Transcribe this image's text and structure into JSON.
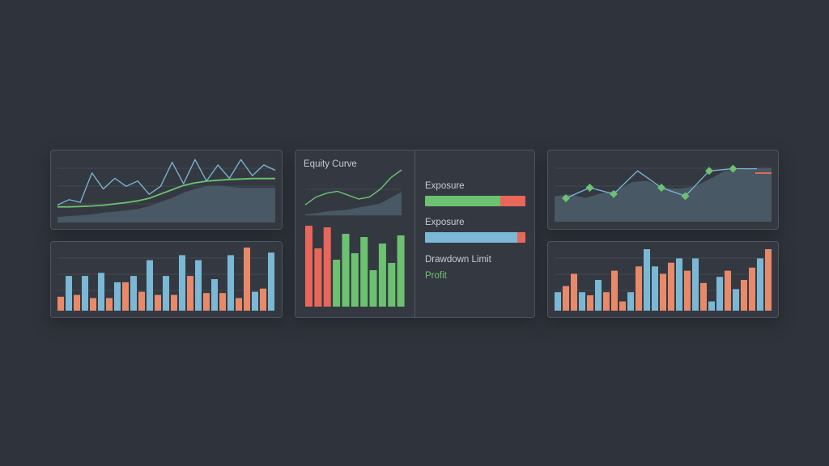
{
  "colors": {
    "blue": "#7ab8d6",
    "orange": "#e8896a",
    "red": "#e8665a",
    "green": "#6cc271",
    "area": "#4a5a66",
    "grid": "#434951",
    "line_blue": "#7ab8d6",
    "line_green": "#6cc271"
  },
  "center_panel": {
    "title": "Equity Curve",
    "metrics": [
      {
        "label": "Exposure",
        "value_pct": 75,
        "fill_color": "#6cc271",
        "rest_color": "#e8665a"
      },
      {
        "label": "Exposure",
        "value_pct": 92,
        "fill_color": "#7ab8d6",
        "rest_color": "#e8665a"
      }
    ],
    "drawdown_label": "Drawdown Limit",
    "profit_label": "Profit"
  },
  "chart_data": [
    {
      "type": "line",
      "title": "",
      "series": [
        {
          "role": "area",
          "values": [
            0.1,
            0.12,
            0.13,
            0.15,
            0.18,
            0.2,
            0.22,
            0.25,
            0.3,
            0.38,
            0.45,
            0.55,
            0.62,
            0.67,
            0.68,
            0.66,
            0.64,
            0.64,
            0.64,
            0.64
          ]
        },
        {
          "role": "line",
          "color": "blue",
          "values": [
            0.1,
            0.2,
            0.15,
            0.7,
            0.4,
            0.6,
            0.45,
            0.55,
            0.3,
            0.45,
            0.9,
            0.5,
            0.95,
            0.55,
            0.85,
            0.6,
            0.95,
            0.65,
            0.85,
            0.75
          ]
        },
        {
          "role": "line",
          "color": "green",
          "values": [
            0.1,
            0.1,
            0.11,
            0.12,
            0.14,
            0.17,
            0.2,
            0.24,
            0.3,
            0.4,
            0.5,
            0.6,
            0.66,
            0.7,
            0.72,
            0.74,
            0.75,
            0.76,
            0.76,
            0.76
          ]
        }
      ],
      "grid": true
    },
    {
      "type": "bar",
      "series": [
        {
          "values": [
            0.22,
            0.55,
            0.25,
            0.55,
            0.2,
            0.6,
            0.2,
            0.45,
            0.45,
            0.55,
            0.3,
            0.8,
            0.25,
            0.55,
            0.25,
            0.88,
            0.55,
            0.8,
            0.28,
            0.5,
            0.28,
            0.88,
            0.2,
            1.0,
            0.3,
            0.35,
            0.92
          ]
        },
        {
          "colors": [
            "orange",
            "blue",
            "orange",
            "blue",
            "orange",
            "blue",
            "orange",
            "blue",
            "orange",
            "blue",
            "orange",
            "blue",
            "orange",
            "blue",
            "orange",
            "blue",
            "orange",
            "blue",
            "orange",
            "blue",
            "orange",
            "blue",
            "orange",
            "orange",
            "blue",
            "orange",
            "blue"
          ]
        }
      ]
    },
    {
      "type": "line",
      "title": "Equity Curve",
      "series": [
        {
          "role": "area",
          "values": [
            0.02,
            0.05,
            0.1,
            0.12,
            0.14,
            0.2,
            0.25,
            0.3,
            0.45,
            0.6
          ]
        },
        {
          "role": "line",
          "color": "green",
          "values": [
            0.1,
            0.3,
            0.4,
            0.45,
            0.35,
            0.25,
            0.3,
            0.5,
            0.8,
            1.0
          ]
        }
      ]
    },
    {
      "type": "bar",
      "values": [
        1.0,
        0.72,
        0.98,
        0.58,
        0.9,
        0.66,
        0.86,
        0.45,
        0.78,
        0.54,
        0.88
      ],
      "colors": [
        "red",
        "red",
        "red",
        "green",
        "green",
        "green",
        "green",
        "green",
        "green",
        "green",
        "green"
      ]
    },
    {
      "type": "line",
      "title": "",
      "series": [
        {
          "role": "area",
          "values": [
            0.45,
            0.48,
            0.42,
            0.5,
            0.55,
            0.7,
            0.72,
            0.6,
            0.58,
            0.62,
            0.75,
            0.9,
            0.92,
            0.95,
            0.95
          ]
        },
        {
          "role": "line",
          "color": "blue",
          "values": [
            0.25,
            0.5,
            0.35,
            0.9,
            0.5,
            0.3,
            0.9,
            0.95,
            0.95
          ]
        },
        {
          "role": "markers",
          "color": "green",
          "points": [
            0,
            1,
            2,
            4,
            5,
            6,
            7
          ]
        }
      ],
      "grid": true
    },
    {
      "type": "bar",
      "series": [
        {
          "values": [
            0.3,
            0.4,
            0.6,
            0.3,
            0.25,
            0.5,
            0.3,
            0.65,
            0.15,
            0.3,
            0.72,
            1.0,
            0.72,
            0.6,
            0.78,
            0.85,
            0.65,
            0.85,
            0.45,
            0.15,
            0.55,
            0.65,
            0.35,
            0.5,
            0.7,
            0.85,
            1.0
          ]
        },
        {
          "colors": [
            "blue",
            "orange",
            "orange",
            "blue",
            "orange",
            "blue",
            "orange",
            "orange",
            "orange",
            "blue",
            "orange",
            "blue",
            "blue",
            "orange",
            "orange",
            "blue",
            "orange",
            "blue",
            "orange",
            "blue",
            "blue",
            "orange",
            "blue",
            "orange",
            "orange",
            "blue",
            "orange"
          ]
        }
      ]
    }
  ]
}
